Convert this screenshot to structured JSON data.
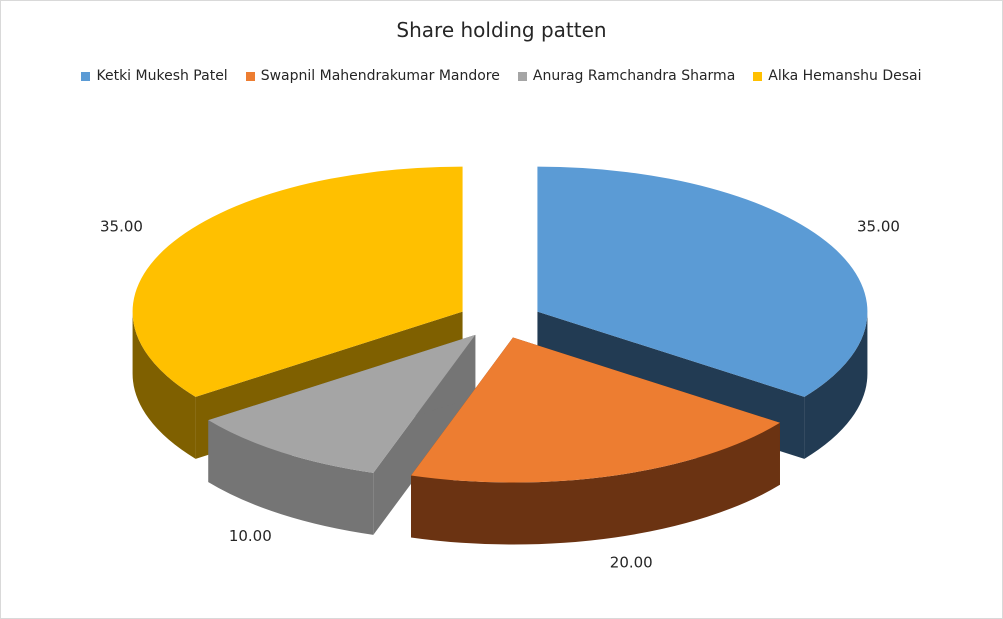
{
  "chart_data": {
    "type": "pie",
    "title": "Share holding patten",
    "legend_position": "top",
    "three_d": true,
    "exploded": true,
    "slices": [
      {
        "name": "Ketki Mukesh  Patel",
        "value": 35.0,
        "label": "35.00",
        "color": "#5B9BD5",
        "side_color": "#223B53"
      },
      {
        "name": "Swapnil Mahendrakumar  Mandore",
        "value": 20.0,
        "label": "20.00",
        "color": "#ED7D31",
        "side_color": "#6B3312"
      },
      {
        "name": "Anurag Ramchandra Sharma",
        "value": 10.0,
        "label": "10.00",
        "color": "#A5A5A5",
        "side_color": "#757575"
      },
      {
        "name": "Alka Hemanshu  Desai",
        "value": 35.0,
        "label": "35.00",
        "color": "#FFC000",
        "side_color": "#7F6000"
      }
    ]
  }
}
